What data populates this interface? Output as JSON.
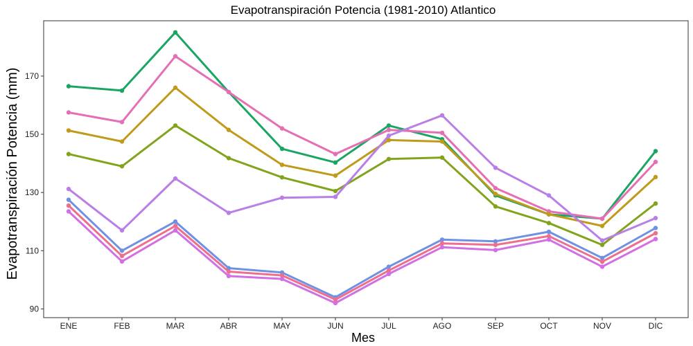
{
  "chart_data": {
    "type": "line",
    "title": "Evapotranspiración Potencia (1981-2010)  Atlantico",
    "xlabel": "Mes",
    "ylabel": "Evapotranspiración Potencia  (mm)",
    "categories": [
      "ENE",
      "FEB",
      "MAR",
      "ABR",
      "MAY",
      "JUN",
      "JUL",
      "AGO",
      "SEP",
      "OCT",
      "NOV",
      "DIC"
    ],
    "ylim": [
      87,
      189
    ],
    "yticks": [
      90,
      110,
      130,
      150,
      170
    ],
    "ytick_labels": [
      "90",
      "110",
      "130",
      "150",
      "170"
    ],
    "grid": false,
    "legend": "none",
    "series": [
      {
        "color": "#1aa563",
        "values": [
          166.5,
          165.0,
          185.0,
          164.5,
          145.0,
          140.3,
          153.0,
          148.3,
          129.0,
          122.5,
          121.0,
          144.2
        ]
      },
      {
        "color": "#e56fb4",
        "values": [
          157.5,
          154.2,
          176.8,
          164.5,
          152.0,
          143.2,
          151.5,
          150.5,
          131.5,
          123.5,
          121.0,
          140.5
        ]
      },
      {
        "color": "#c09a1a",
        "values": [
          151.3,
          147.5,
          166.0,
          151.5,
          139.5,
          135.8,
          148.0,
          147.5,
          129.5,
          122.5,
          118.5,
          135.3
        ]
      },
      {
        "color": "#82a41c",
        "values": [
          143.2,
          139.0,
          153.0,
          141.8,
          135.2,
          130.5,
          141.5,
          142.0,
          125.2,
          119.5,
          112.0,
          126.2
        ]
      },
      {
        "color": "#b97fe6",
        "values": [
          131.2,
          117.0,
          134.8,
          123.0,
          128.2,
          128.5,
          149.5,
          156.5,
          138.5,
          129.0,
          113.5,
          121.2
        ]
      },
      {
        "color": "#6e91e4",
        "values": [
          127.5,
          110.0,
          120.0,
          104.0,
          102.5,
          94.0,
          104.5,
          113.8,
          113.2,
          116.5,
          107.5,
          117.8
        ]
      },
      {
        "color": "#ee6e8e",
        "values": [
          125.5,
          108.2,
          118.5,
          102.8,
          101.5,
          93.2,
          103.2,
          112.5,
          112.0,
          115.0,
          106.2,
          116.0
        ]
      },
      {
        "color": "#d16fe3",
        "values": [
          123.5,
          106.3,
          117.0,
          101.3,
          100.3,
          92.0,
          102.0,
          111.2,
          110.2,
          113.8,
          104.5,
          114.0
        ]
      }
    ]
  }
}
